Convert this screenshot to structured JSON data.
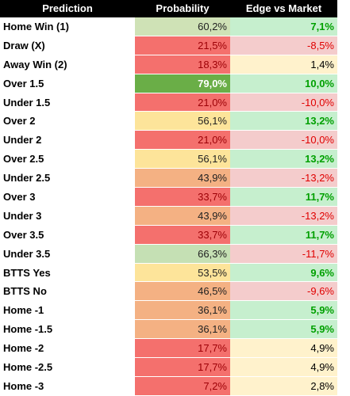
{
  "table": {
    "header": [
      "Prediction",
      "Probability",
      "Edge vs Market"
    ],
    "rows": [
      {
        "cells": [
          "Home Win (1)",
          "60,2%",
          "7,1%"
        ],
        "prob_bg": "#cfe2b6",
        "prob_fg": "#222222",
        "edge_bg": "#c6efce",
        "edge_fg": "#00a000"
      },
      {
        "cells": [
          "Draw (X)",
          "21,5%",
          "-8,5%"
        ],
        "prob_bg": "#f4706d",
        "prob_fg": "#9c0006",
        "edge_bg": "#f4cccc",
        "edge_fg": "#e00000"
      },
      {
        "cells": [
          "Away Win (2)",
          "18,3%",
          "1,4%"
        ],
        "prob_bg": "#f4706d",
        "prob_fg": "#9c0006",
        "edge_bg": "#fff2cc",
        "edge_fg": "#000000"
      },
      {
        "cells": [
          "Over 1.5",
          "79,0%",
          "10,0%"
        ],
        "prob_bg": "#6aae47",
        "prob_fg": "#ffffff",
        "edge_bg": "#c6efce",
        "edge_fg": "#00a000"
      },
      {
        "cells": [
          "Under 1.5",
          "21,0%",
          "-10,0%"
        ],
        "prob_bg": "#f4706d",
        "prob_fg": "#9c0006",
        "edge_bg": "#f4cccc",
        "edge_fg": "#e00000"
      },
      {
        "cells": [
          "Over 2",
          "56,1%",
          "13,2%"
        ],
        "prob_bg": "#fde49a",
        "prob_fg": "#222222",
        "edge_bg": "#c6efce",
        "edge_fg": "#00a000"
      },
      {
        "cells": [
          "Under 2",
          "21,0%",
          "-10,0%"
        ],
        "prob_bg": "#f4706d",
        "prob_fg": "#9c0006",
        "edge_bg": "#f4cccc",
        "edge_fg": "#e00000"
      },
      {
        "cells": [
          "Over 2.5",
          "56,1%",
          "13,2%"
        ],
        "prob_bg": "#fde49a",
        "prob_fg": "#222222",
        "edge_bg": "#c6efce",
        "edge_fg": "#00a000"
      },
      {
        "cells": [
          "Under 2.5",
          "43,9%",
          "-13,2%"
        ],
        "prob_bg": "#f4b183",
        "prob_fg": "#222222",
        "edge_bg": "#f4cccc",
        "edge_fg": "#e00000"
      },
      {
        "cells": [
          "Over 3",
          "33,7%",
          "11,7%"
        ],
        "prob_bg": "#f4706d",
        "prob_fg": "#9c0006",
        "edge_bg": "#c6efce",
        "edge_fg": "#00a000"
      },
      {
        "cells": [
          "Under 3",
          "43,9%",
          "-13,2%"
        ],
        "prob_bg": "#f4b183",
        "prob_fg": "#222222",
        "edge_bg": "#f4cccc",
        "edge_fg": "#e00000"
      },
      {
        "cells": [
          "Over 3.5",
          "33,7%",
          "11,7%"
        ],
        "prob_bg": "#f4706d",
        "prob_fg": "#9c0006",
        "edge_bg": "#c6efce",
        "edge_fg": "#00a000"
      },
      {
        "cells": [
          "Under 3.5",
          "66,3%",
          "-11,7%"
        ],
        "prob_bg": "#c5e0b4",
        "prob_fg": "#222222",
        "edge_bg": "#f4cccc",
        "edge_fg": "#e00000"
      },
      {
        "cells": [
          "BTTS Yes",
          "53,5%",
          "9,6%"
        ],
        "prob_bg": "#fde49a",
        "prob_fg": "#222222",
        "edge_bg": "#c6efce",
        "edge_fg": "#00a000"
      },
      {
        "cells": [
          "BTTS No",
          "46,5%",
          "-9,6%"
        ],
        "prob_bg": "#f4b183",
        "prob_fg": "#222222",
        "edge_bg": "#f4cccc",
        "edge_fg": "#e00000"
      },
      {
        "cells": [
          "Home -1",
          "36,1%",
          "5,9%"
        ],
        "prob_bg": "#f4b183",
        "prob_fg": "#222222",
        "edge_bg": "#c6efce",
        "edge_fg": "#00a000"
      },
      {
        "cells": [
          "Home -1.5",
          "36,1%",
          "5,9%"
        ],
        "prob_bg": "#f4b183",
        "prob_fg": "#222222",
        "edge_bg": "#c6efce",
        "edge_fg": "#00a000"
      },
      {
        "cells": [
          "Home -2",
          "17,7%",
          "4,9%"
        ],
        "prob_bg": "#f4706d",
        "prob_fg": "#9c0006",
        "edge_bg": "#fff2cc",
        "edge_fg": "#000000"
      },
      {
        "cells": [
          "Home -2.5",
          "17,7%",
          "4,9%"
        ],
        "prob_bg": "#f4706d",
        "prob_fg": "#9c0006",
        "edge_bg": "#fff2cc",
        "edge_fg": "#000000"
      },
      {
        "cells": [
          "Home -3",
          "7,2%",
          "2,8%"
        ],
        "prob_bg": "#f4706d",
        "prob_fg": "#9c0006",
        "edge_bg": "#fff2cc",
        "edge_fg": "#000000"
      }
    ]
  }
}
